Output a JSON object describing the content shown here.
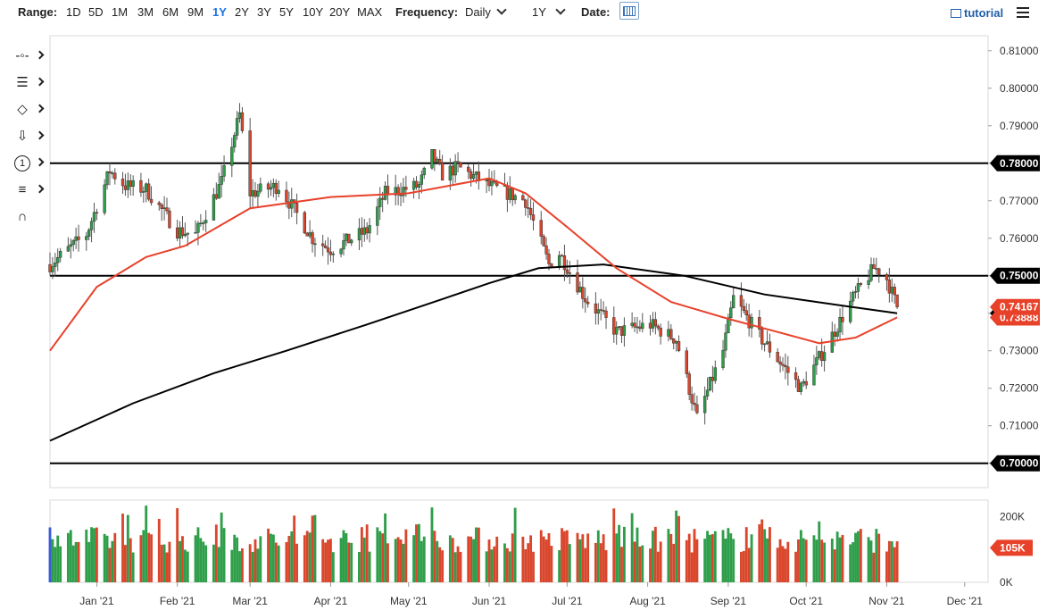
{
  "toolbar": {
    "range_label": "Range:",
    "ranges": [
      "1D",
      "5D",
      "1M",
      "3M",
      "6M",
      "9M",
      "1Y",
      "2Y",
      "3Y",
      "5Y",
      "10Y",
      "20Y",
      "MAX"
    ],
    "active_range": "1Y",
    "frequency_label": "Frequency:",
    "frequency_value": "Daily",
    "period_value": "1Y",
    "date_label": "Date:",
    "tutorial_label": "tutorial"
  },
  "sidebar": {
    "tools": [
      {
        "name": "crosshair-tool-icon"
      },
      {
        "name": "trendline-tool-icon"
      },
      {
        "name": "shapes-tool-icon"
      },
      {
        "name": "arrow-tool-icon"
      },
      {
        "name": "annotation-tool-icon",
        "text": "1"
      },
      {
        "name": "indicator-tool-icon"
      },
      {
        "name": "magnet-tool-icon"
      }
    ]
  },
  "colors": {
    "up": "#2e9e4a",
    "down": "#d9462c",
    "ma_red": "#e8412a",
    "ma_black": "#000000",
    "last_price_bg": "#e8412a",
    "level_bg": "#000000"
  },
  "chart_data": {
    "type": "candlestick",
    "price_axis": {
      "ylim": [
        0.6935,
        0.814
      ],
      "ticks": [
        "0.81000",
        "0.80000",
        "0.79000",
        "0.78000",
        "0.77000",
        "0.76000",
        "0.75000",
        "0.74000",
        "0.73000",
        "0.72000",
        "0.71000",
        "0.70000"
      ]
    },
    "x_axis": {
      "range": [
        "2020-12-14",
        "2021-12-10"
      ],
      "labels": [
        {
          "label": "Jan '21",
          "date": "2021-01-01"
        },
        {
          "label": "Feb '21",
          "date": "2021-02-01"
        },
        {
          "label": "Mar '21",
          "date": "2021-03-01"
        },
        {
          "label": "Apr '21",
          "date": "2021-04-01"
        },
        {
          "label": "May '21",
          "date": "2021-05-01"
        },
        {
          "label": "Jun '21",
          "date": "2021-06-01"
        },
        {
          "label": "Jul '21",
          "date": "2021-07-01"
        },
        {
          "label": "Aug '21",
          "date": "2021-08-01"
        },
        {
          "label": "Sep '21",
          "date": "2021-09-01"
        },
        {
          "label": "Oct '21",
          "date": "2021-10-01"
        },
        {
          "label": "Nov '21",
          "date": "2021-11-01"
        },
        {
          "label": "Dec '21",
          "date": "2021-12-01"
        }
      ]
    },
    "horizontal_levels": [
      {
        "value": 0.78,
        "label": "0.78000"
      },
      {
        "value": 0.75,
        "label": "0.75000"
      },
      {
        "value": 0.7,
        "label": "0.70000"
      }
    ],
    "last_price": {
      "value": 0.74167,
      "label": "0.74167"
    },
    "ma_fast_last": {
      "value": 0.73888,
      "label": "0.73888"
    },
    "ma_slow_last": {
      "value": 0.74,
      "label": "0.74000"
    },
    "price_path": [
      [
        "2020-12-14",
        0.753
      ],
      [
        "2020-12-28",
        0.761
      ],
      [
        "2021-01-06",
        0.778
      ],
      [
        "2021-01-12",
        0.774
      ],
      [
        "2021-01-20",
        0.773
      ],
      [
        "2021-02-01",
        0.762
      ],
      [
        "2021-02-08",
        0.761
      ],
      [
        "2021-02-18",
        0.775
      ],
      [
        "2021-02-25",
        0.793
      ],
      [
        "2021-03-01",
        0.772
      ],
      [
        "2021-03-12",
        0.774
      ],
      [
        "2021-03-25",
        0.76
      ],
      [
        "2021-04-01",
        0.757
      ],
      [
        "2021-04-15",
        0.762
      ],
      [
        "2021-04-22",
        0.772
      ],
      [
        "2021-05-05",
        0.774
      ],
      [
        "2021-05-10",
        0.782
      ],
      [
        "2021-05-14",
        0.777
      ],
      [
        "2021-05-20",
        0.779
      ],
      [
        "2021-06-01",
        0.774
      ],
      [
        "2021-06-15",
        0.77
      ],
      [
        "2021-06-24",
        0.753
      ],
      [
        "2021-06-28",
        0.756
      ],
      [
        "2021-07-08",
        0.744
      ],
      [
        "2021-07-20",
        0.735
      ],
      [
        "2021-08-02",
        0.737
      ],
      [
        "2021-08-12",
        0.733
      ],
      [
        "2021-08-20",
        0.712
      ],
      [
        "2021-08-30",
        0.73
      ],
      [
        "2021-09-03",
        0.744
      ],
      [
        "2021-09-14",
        0.733
      ],
      [
        "2021-09-29",
        0.72
      ],
      [
        "2021-10-06",
        0.728
      ],
      [
        "2021-10-19",
        0.744
      ],
      [
        "2021-10-27",
        0.752
      ],
      [
        "2021-10-31",
        0.751
      ],
      [
        "2021-11-05",
        0.7417
      ]
    ],
    "ma_fast": [
      [
        "2020-12-14",
        0.73
      ],
      [
        "2021-01-01",
        0.747
      ],
      [
        "2021-01-20",
        0.755
      ],
      [
        "2021-02-04",
        0.758
      ],
      [
        "2021-03-01",
        0.768
      ],
      [
        "2021-04-01",
        0.771
      ],
      [
        "2021-05-01",
        0.772
      ],
      [
        "2021-06-01",
        0.776
      ],
      [
        "2021-06-15",
        0.772
      ],
      [
        "2021-07-01",
        0.763
      ],
      [
        "2021-07-20",
        0.752
      ],
      [
        "2021-08-10",
        0.743
      ],
      [
        "2021-09-01",
        0.7385
      ],
      [
        "2021-09-20",
        0.735
      ],
      [
        "2021-10-06",
        0.732
      ],
      [
        "2021-10-20",
        0.7335
      ],
      [
        "2021-11-05",
        0.7389
      ]
    ],
    "ma_slow": [
      [
        "2020-12-14",
        0.706
      ],
      [
        "2021-01-15",
        0.716
      ],
      [
        "2021-02-15",
        0.724
      ],
      [
        "2021-03-15",
        0.73
      ],
      [
        "2021-04-15",
        0.737
      ],
      [
        "2021-05-15",
        0.744
      ],
      [
        "2021-06-01",
        0.748
      ],
      [
        "2021-06-20",
        0.752
      ],
      [
        "2021-07-15",
        0.753
      ],
      [
        "2021-08-15",
        0.75
      ],
      [
        "2021-09-15",
        0.745
      ],
      [
        "2021-10-15",
        0.742
      ],
      [
        "2021-11-05",
        0.74
      ]
    ],
    "volume_axis": {
      "ylim": [
        0,
        250000
      ],
      "ticks": [
        "200K",
        "0K"
      ]
    },
    "last_volume": {
      "label": "105K"
    }
  }
}
